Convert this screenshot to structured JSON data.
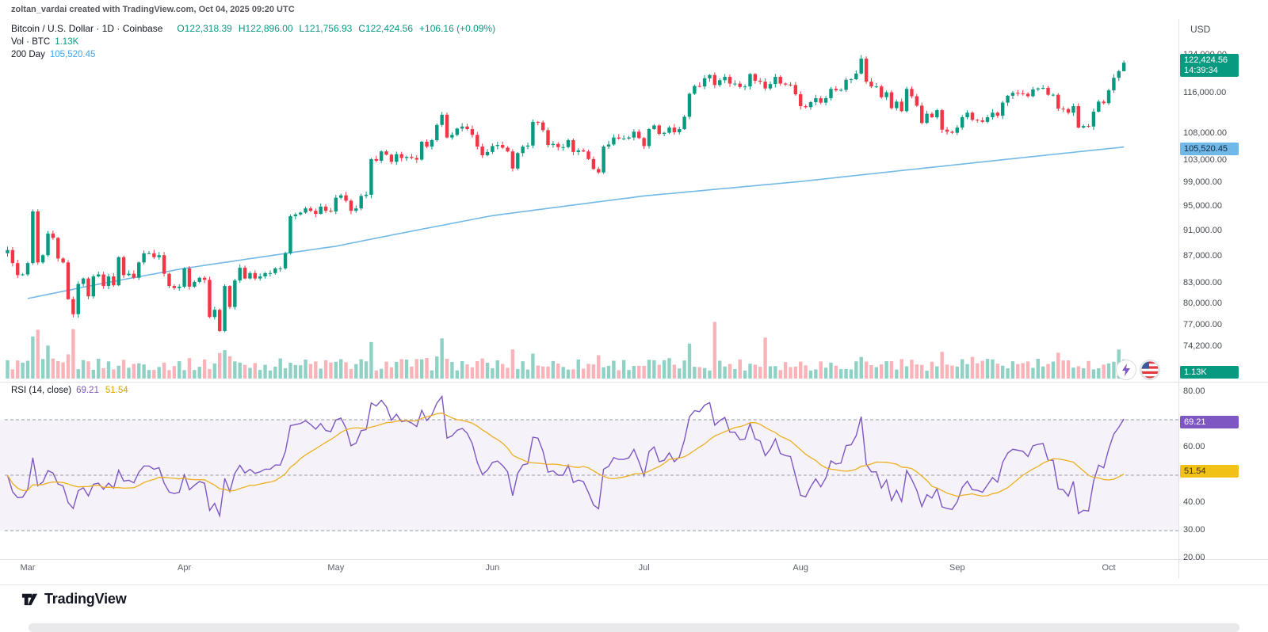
{
  "attribution": "zoltan_vardai created with TradingView.com, Oct 04, 2025 09:20 UTC",
  "header": {
    "symbol_title": "Bitcoin / U.S. Dollar · 1D · Coinbase",
    "ohlc": {
      "o_label": "O",
      "o": "122,318.39",
      "h_label": "H",
      "h": "122,896.00",
      "l_label": "L",
      "l": "121,756.93",
      "c_label": "C",
      "c": "122,424.56",
      "change": "+106.16 (+0.09%)"
    },
    "vol_label": "Vol · BTC",
    "vol_value": "1.13K",
    "ma_label": "200 Day",
    "ma_value": "105,520.45"
  },
  "top_right": {
    "currency": "USD"
  },
  "price_axis": {
    "ticks": [
      "124,000.00",
      "116,000.00",
      "108,000.00",
      "103,000.00",
      "99,000.00",
      "95,000.00",
      "91,000.00",
      "87,000.00",
      "83,000.00",
      "80,000.00",
      "77,000.00",
      "74,200.00"
    ],
    "tick_values": [
      124000,
      116000,
      108000,
      103000,
      99000,
      95000,
      91000,
      87000,
      83000,
      80000,
      77000,
      74200
    ],
    "last_price_badge": {
      "price": "122,424.56",
      "countdown": "14:39:34",
      "color": "#089981"
    },
    "ma_badge": {
      "value": "105,520.45",
      "color": "#6fb8e8"
    },
    "volume_badge": {
      "value": "1.13K",
      "color": "#089981"
    }
  },
  "rsi_panel": {
    "title": "RSI",
    "params": "(14, close)",
    "value": "69.21",
    "ma_value": "51.54",
    "ticks": [
      "80.00",
      "60.00",
      "40.00",
      "30.00",
      "20.00"
    ],
    "tick_values": [
      80,
      60,
      40,
      30,
      20
    ]
  },
  "time_axis": {
    "labels": [
      "Mar",
      "Apr",
      "May",
      "Jun",
      "Jul",
      "Aug",
      "Sep",
      "Oct"
    ],
    "day_offsets": [
      0,
      31,
      61,
      92,
      122,
      153,
      184,
      214
    ]
  },
  "footer": {
    "brand": "TradingView"
  },
  "chart_data": [
    {
      "type": "candlestick",
      "name": "BTCUSD 1D Coinbase",
      "scale": "log",
      "start_date": "2025-03-01",
      "end_date": "2025-10-04",
      "up_color": "#089981",
      "down_color": "#f23645",
      "ylim": [
        72500,
        126500
      ],
      "y_ticks": [
        124000,
        116000,
        108000,
        103000,
        99000,
        95000,
        91000,
        87000,
        83000,
        80000,
        77000,
        74200
      ],
      "pre_closes": [
        88000,
        86000,
        84200,
        84300
      ],
      "first_open": 87500,
      "closes": [
        86000,
        94200,
        86100,
        87200,
        90600,
        89900,
        86700,
        86100,
        80700,
        78600,
        82900,
        83700,
        81100,
        84000,
        84300,
        82600,
        84000,
        82700,
        86900,
        84200,
        84400,
        83800,
        86100,
        87500,
        87500,
        86900,
        87200,
        84400,
        82600,
        82300,
        82500,
        85200,
        82500,
        83200,
        83800,
        83500,
        78200,
        79200,
        76300,
        82600,
        79600,
        83400,
        85300,
        83700,
        84500,
        83700,
        84000,
        84500,
        84500,
        85200,
        85200,
        87500,
        93400,
        93700,
        94000,
        94700,
        94300,
        93800,
        95000,
        94300,
        94200,
        96500,
        96900,
        96000,
        94300,
        94700,
        96800,
        97000,
        103300,
        103000,
        104700,
        104100,
        102800,
        104200,
        103500,
        103700,
        103500,
        103200,
        106500,
        105600,
        106800,
        109700,
        111700,
        107300,
        107800,
        109000,
        109400,
        108900,
        107800,
        105600,
        104000,
        104600,
        105700,
        105900,
        105400,
        104700,
        101600,
        104400,
        105600,
        105800,
        110300,
        110200,
        108700,
        105900,
        106100,
        105500,
        105500,
        106800,
        104600,
        104900,
        104700,
        103300,
        101500,
        100900,
        105600,
        106000,
        107300,
        107100,
        107100,
        107300,
        108400,
        107200,
        105700,
        108900,
        109600,
        108000,
        108200,
        109200,
        108300,
        108900,
        111300,
        115900,
        117500,
        117400,
        119100,
        119800,
        117700,
        118700,
        119400,
        118000,
        118000,
        117300,
        117400,
        120000,
        118600,
        118400,
        117000,
        117900,
        119400,
        118000,
        117800,
        117700,
        115800,
        113400,
        113200,
        114200,
        115000,
        114100,
        115000,
        116900,
        116600,
        116700,
        118800,
        118900,
        120100,
        123300,
        118400,
        117400,
        117400,
        115200,
        116200,
        113000,
        114300,
        112400,
        116900,
        115400,
        113500,
        110100,
        111900,
        111200,
        112600,
        108800,
        108400,
        108200,
        109200,
        111200,
        112100,
        110700,
        110600,
        110300,
        111200,
        112100,
        111500,
        114100,
        115500,
        116100,
        116000,
        115900,
        115400,
        116800,
        117000,
        117100,
        115700,
        115700,
        112900,
        112800,
        112100,
        113400,
        109200,
        109500,
        109400,
        112300,
        114300,
        114000,
        116600,
        119200,
        120600,
        122424.56
      ],
      "last_candle": {
        "open": 122318.39,
        "high": 122896.0,
        "low": 121756.93,
        "close": 122424.56,
        "change": 106.16,
        "change_pct": 0.09
      }
    },
    {
      "type": "line",
      "name": "MA 200 Day",
      "color": "#72b9e8",
      "last_value": 105520.45,
      "anchors_day": [
        0,
        15,
        31,
        61,
        92,
        122,
        153,
        184,
        217
      ],
      "anchors_value": [
        80800,
        83000,
        85200,
        88600,
        93500,
        96800,
        99300,
        102300,
        105520.45
      ]
    },
    {
      "type": "bar",
      "name": "Volume BTC",
      "last_label": "1.13K",
      "up_color": "rgba(8,153,129,0.45)",
      "down_color": "rgba(242,54,69,0.38)",
      "spike_days": {
        "1": 2.8,
        "2": 2.4,
        "4": 1.8,
        "8": 2.3,
        "9": 2.5,
        "12": 1.7,
        "38": 2.2,
        "39": 1.9,
        "40": 1.6,
        "52": 1.8,
        "68": 1.9,
        "81": 2.6,
        "82": 2.3,
        "96": 1.5,
        "100": 1.6,
        "113": 1.6,
        "131": 1.8,
        "136": 3.8,
        "146": 3.3,
        "165": 1.7,
        "171": 1.4,
        "177": 1.6,
        "181": 1.5,
        "187": 1.4,
        "204": 1.3,
        "208": 1.4,
        "215": 1.5,
        "216": 1.6
      }
    },
    {
      "type": "line",
      "name": "RSI (14, close)",
      "period": 14,
      "source": "close",
      "last": 69.21,
      "ma_last": 51.54,
      "levels": [
        70,
        50,
        30
      ],
      "band": [
        30,
        70
      ],
      "ylim": [
        20,
        80
      ],
      "line_color": "#7e57c2",
      "ma_color": "#edb021",
      "band_color": "rgba(126,87,194,0.08)"
    }
  ]
}
